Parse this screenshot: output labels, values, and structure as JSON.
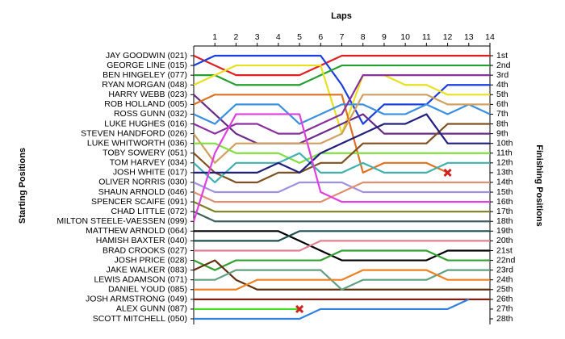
{
  "chart_data": {
    "type": "line",
    "title": "Laps",
    "ylabel": "Starting Positions",
    "y2label": "Finishing Positions",
    "x": [
      0,
      1,
      2,
      3,
      4,
      5,
      6,
      7,
      8,
      9,
      10,
      11,
      12,
      13,
      14
    ],
    "xlim": [
      0,
      14
    ],
    "xticks": [
      1,
      2,
      3,
      4,
      5,
      6,
      7,
      8,
      9,
      10,
      11,
      12,
      13,
      14
    ],
    "ylim": [
      1,
      28
    ],
    "y2ticks": [
      {
        "value": 1,
        "label": "1st"
      },
      {
        "value": 2,
        "label": "2nd"
      },
      {
        "value": 3,
        "label": "3rd"
      },
      {
        "value": 4,
        "label": "4th"
      },
      {
        "value": 5,
        "label": "5th"
      },
      {
        "value": 6,
        "label": "6th"
      },
      {
        "value": 7,
        "label": "7th"
      },
      {
        "value": 8,
        "label": "8th"
      },
      {
        "value": 9,
        "label": "9th"
      },
      {
        "value": 10,
        "label": "10th"
      },
      {
        "value": 11,
        "label": "11th"
      },
      {
        "value": 12,
        "label": "12th"
      },
      {
        "value": 13,
        "label": "13th"
      },
      {
        "value": 14,
        "label": "14th"
      },
      {
        "value": 15,
        "label": "15th"
      },
      {
        "value": 16,
        "label": "16th"
      },
      {
        "value": 17,
        "label": "17th"
      },
      {
        "value": 18,
        "label": "18th"
      },
      {
        "value": 19,
        "label": "19th"
      },
      {
        "value": 20,
        "label": "20th"
      },
      {
        "value": 21,
        "label": "21st"
      },
      {
        "value": 22,
        "label": "22nd"
      },
      {
        "value": 23,
        "label": "23rd"
      },
      {
        "value": 24,
        "label": "24th"
      },
      {
        "value": 25,
        "label": "25th"
      },
      {
        "value": 26,
        "label": "26th"
      },
      {
        "value": 27,
        "label": "27th"
      },
      {
        "value": 28,
        "label": "28th"
      }
    ],
    "series": [
      {
        "name": "JAY GOODWIN (021)",
        "color": "#e02020",
        "values": [
          1,
          2,
          3,
          3,
          3,
          3,
          2,
          1,
          1,
          1,
          1,
          1,
          1,
          1,
          1
        ]
      },
      {
        "name": "GEORGE LINE (015)",
        "color": "#1a3fe0",
        "values": [
          2,
          1,
          1,
          1,
          1,
          1,
          1,
          4,
          8,
          6,
          6,
          6,
          4,
          4,
          4
        ]
      },
      {
        "name": "BEN HINGELEY (077)",
        "color": "#22a030",
        "values": [
          3,
          3,
          4,
          4,
          4,
          4,
          3,
          2,
          2,
          2,
          2,
          2,
          2,
          2,
          2
        ]
      },
      {
        "name": "RYAN MORGAN (048)",
        "color": "#e8e020",
        "values": [
          4,
          3,
          2,
          2,
          2,
          2,
          2,
          9,
          3,
          3,
          4,
          4,
          5,
          5,
          5
        ]
      },
      {
        "name": "HARRY WEBB (023)",
        "color": "#6a2a8a",
        "values": [
          5,
          7,
          9,
          10,
          10,
          10,
          9,
          8,
          7,
          9,
          9,
          9,
          9,
          9,
          9
        ]
      },
      {
        "name": "ROB HOLLAND (005)",
        "color": "#e07020",
        "values": [
          6,
          5,
          5,
          5,
          5,
          5,
          5,
          5,
          13,
          12,
          12,
          12,
          13,
          null,
          null
        ],
        "retired": true
      },
      {
        "name": "ROSS GUNN (032)",
        "color": "#3a90e0",
        "values": [
          7,
          8,
          6,
          6,
          6,
          8,
          7,
          6,
          6,
          7,
          7,
          6,
          7,
          6,
          7
        ]
      },
      {
        "name": "LUKE HUGHES (016)",
        "color": "#8a30a0",
        "values": [
          8,
          9,
          8,
          8,
          9,
          9,
          8,
          7,
          3,
          3,
          3,
          3,
          3,
          3,
          3
        ]
      },
      {
        "name": "STEVEN HANDFORD (026)",
        "color": "#d0a060",
        "values": [
          9,
          12,
          10,
          10,
          10,
          10,
          10,
          9,
          5,
          5,
          5,
          5,
          6,
          6,
          6
        ]
      },
      {
        "name": "LUKE WHITWORTH (036)",
        "color": "#80e040",
        "values": [
          10,
          10,
          11,
          11,
          11,
          12,
          11,
          11,
          11,
          11,
          11,
          11,
          11,
          11,
          11
        ]
      },
      {
        "name": "TOBY SOWERY (051)",
        "color": "#805020",
        "values": [
          11,
          13,
          14,
          14,
          13,
          13,
          12,
          12,
          10,
          10,
          10,
          10,
          8,
          8,
          8
        ]
      },
      {
        "name": "TOM HARVEY (034)",
        "color": "#40b0b0",
        "values": [
          12,
          14,
          12,
          12,
          12,
          11,
          13,
          13,
          12,
          13,
          13,
          13,
          12,
          12,
          12
        ]
      },
      {
        "name": "JOSH WHITE (017)",
        "color": "#202080",
        "values": [
          13,
          13,
          13,
          13,
          12,
          13,
          11,
          10,
          9,
          8,
          8,
          7,
          10,
          10,
          10
        ]
      },
      {
        "name": "OLIVER NORRIS (030)",
        "color": "#a090e0",
        "values": [
          14,
          15,
          15,
          15,
          15,
          14,
          14,
          14,
          15,
          15,
          15,
          15,
          15,
          15,
          15
        ]
      },
      {
        "name": "SHAUN ARNOLD (046)",
        "color": "#e09070",
        "values": [
          15,
          16,
          16,
          16,
          16,
          16,
          16,
          15,
          14,
          14,
          14,
          14,
          14,
          14,
          14
        ]
      },
      {
        "name": "SPENCER SCAIFE (091)",
        "color": "#808020",
        "values": [
          16,
          17,
          17,
          17,
          17,
          17,
          17,
          17,
          17,
          17,
          17,
          17,
          17,
          17,
          17
        ]
      },
      {
        "name": "CHAD LITTLE (072)",
        "color": "#406060",
        "values": [
          17,
          18,
          18,
          18,
          18,
          18,
          18,
          18,
          18,
          18,
          18,
          18,
          18,
          18,
          18
        ]
      },
      {
        "name": "MILTON STEELE-VAESSEN (099)",
        "color": "#e040e0",
        "values": [
          18,
          11,
          7,
          7,
          7,
          7,
          15,
          16,
          16,
          16,
          16,
          16,
          16,
          16,
          16
        ]
      },
      {
        "name": "MATTHEW ARNOLD (064)",
        "color": "#000000",
        "values": [
          19,
          19,
          19,
          19,
          19,
          20,
          21,
          22,
          22,
          22,
          22,
          22,
          21,
          21,
          21
        ]
      },
      {
        "name": "HAMISH BAXTER (040)",
        "color": "#205050",
        "values": [
          20,
          20,
          20,
          20,
          20,
          19,
          19,
          19,
          19,
          19,
          19,
          19,
          19,
          19,
          19
        ]
      },
      {
        "name": "BRAD CROOKS (027)",
        "color": "#e08090",
        "values": [
          21,
          21,
          21,
          21,
          21,
          21,
          20,
          20,
          20,
          20,
          20,
          20,
          20,
          20,
          20
        ]
      },
      {
        "name": "JOSH PRICE (028)",
        "color": "#30a030",
        "values": [
          22,
          23,
          22,
          22,
          22,
          22,
          22,
          21,
          21,
          21,
          21,
          21,
          22,
          22,
          22
        ]
      },
      {
        "name": "JAKE WALKER (083)",
        "color": "#603010",
        "values": [
          23,
          22,
          24,
          25,
          25,
          25,
          25,
          25,
          25,
          25,
          25,
          25,
          25,
          25,
          25
        ]
      },
      {
        "name": "LEWIS ADAMSON (071)",
        "color": "#60a080",
        "values": [
          24,
          24,
          23,
          23,
          23,
          23,
          23,
          25,
          24,
          24,
          24,
          24,
          23,
          23,
          23
        ]
      },
      {
        "name": "DANIEL YOUD (085)",
        "color": "#f08020",
        "values": [
          25,
          25,
          25,
          24,
          24,
          24,
          24,
          24,
          23,
          23,
          23,
          23,
          24,
          24,
          24
        ]
      },
      {
        "name": "JOSH ARMSTRONG (049)",
        "color": "#802010",
        "values": [
          26,
          26,
          26,
          26,
          26,
          26,
          26,
          26,
          26,
          26,
          26,
          26,
          26,
          26,
          26
        ]
      },
      {
        "name": "ALEX GUNN (087)",
        "color": "#40e020",
        "values": [
          27,
          27,
          27,
          27,
          27,
          27,
          null,
          null,
          null,
          null,
          null,
          null,
          null,
          null,
          null
        ],
        "retired": true
      },
      {
        "name": "SCOTT MITCHELL (050)",
        "color": "#3080e0",
        "values": [
          28,
          28,
          28,
          28,
          28,
          28,
          27,
          27,
          27,
          27,
          27,
          27,
          27,
          26,
          null
        ]
      }
    ]
  }
}
